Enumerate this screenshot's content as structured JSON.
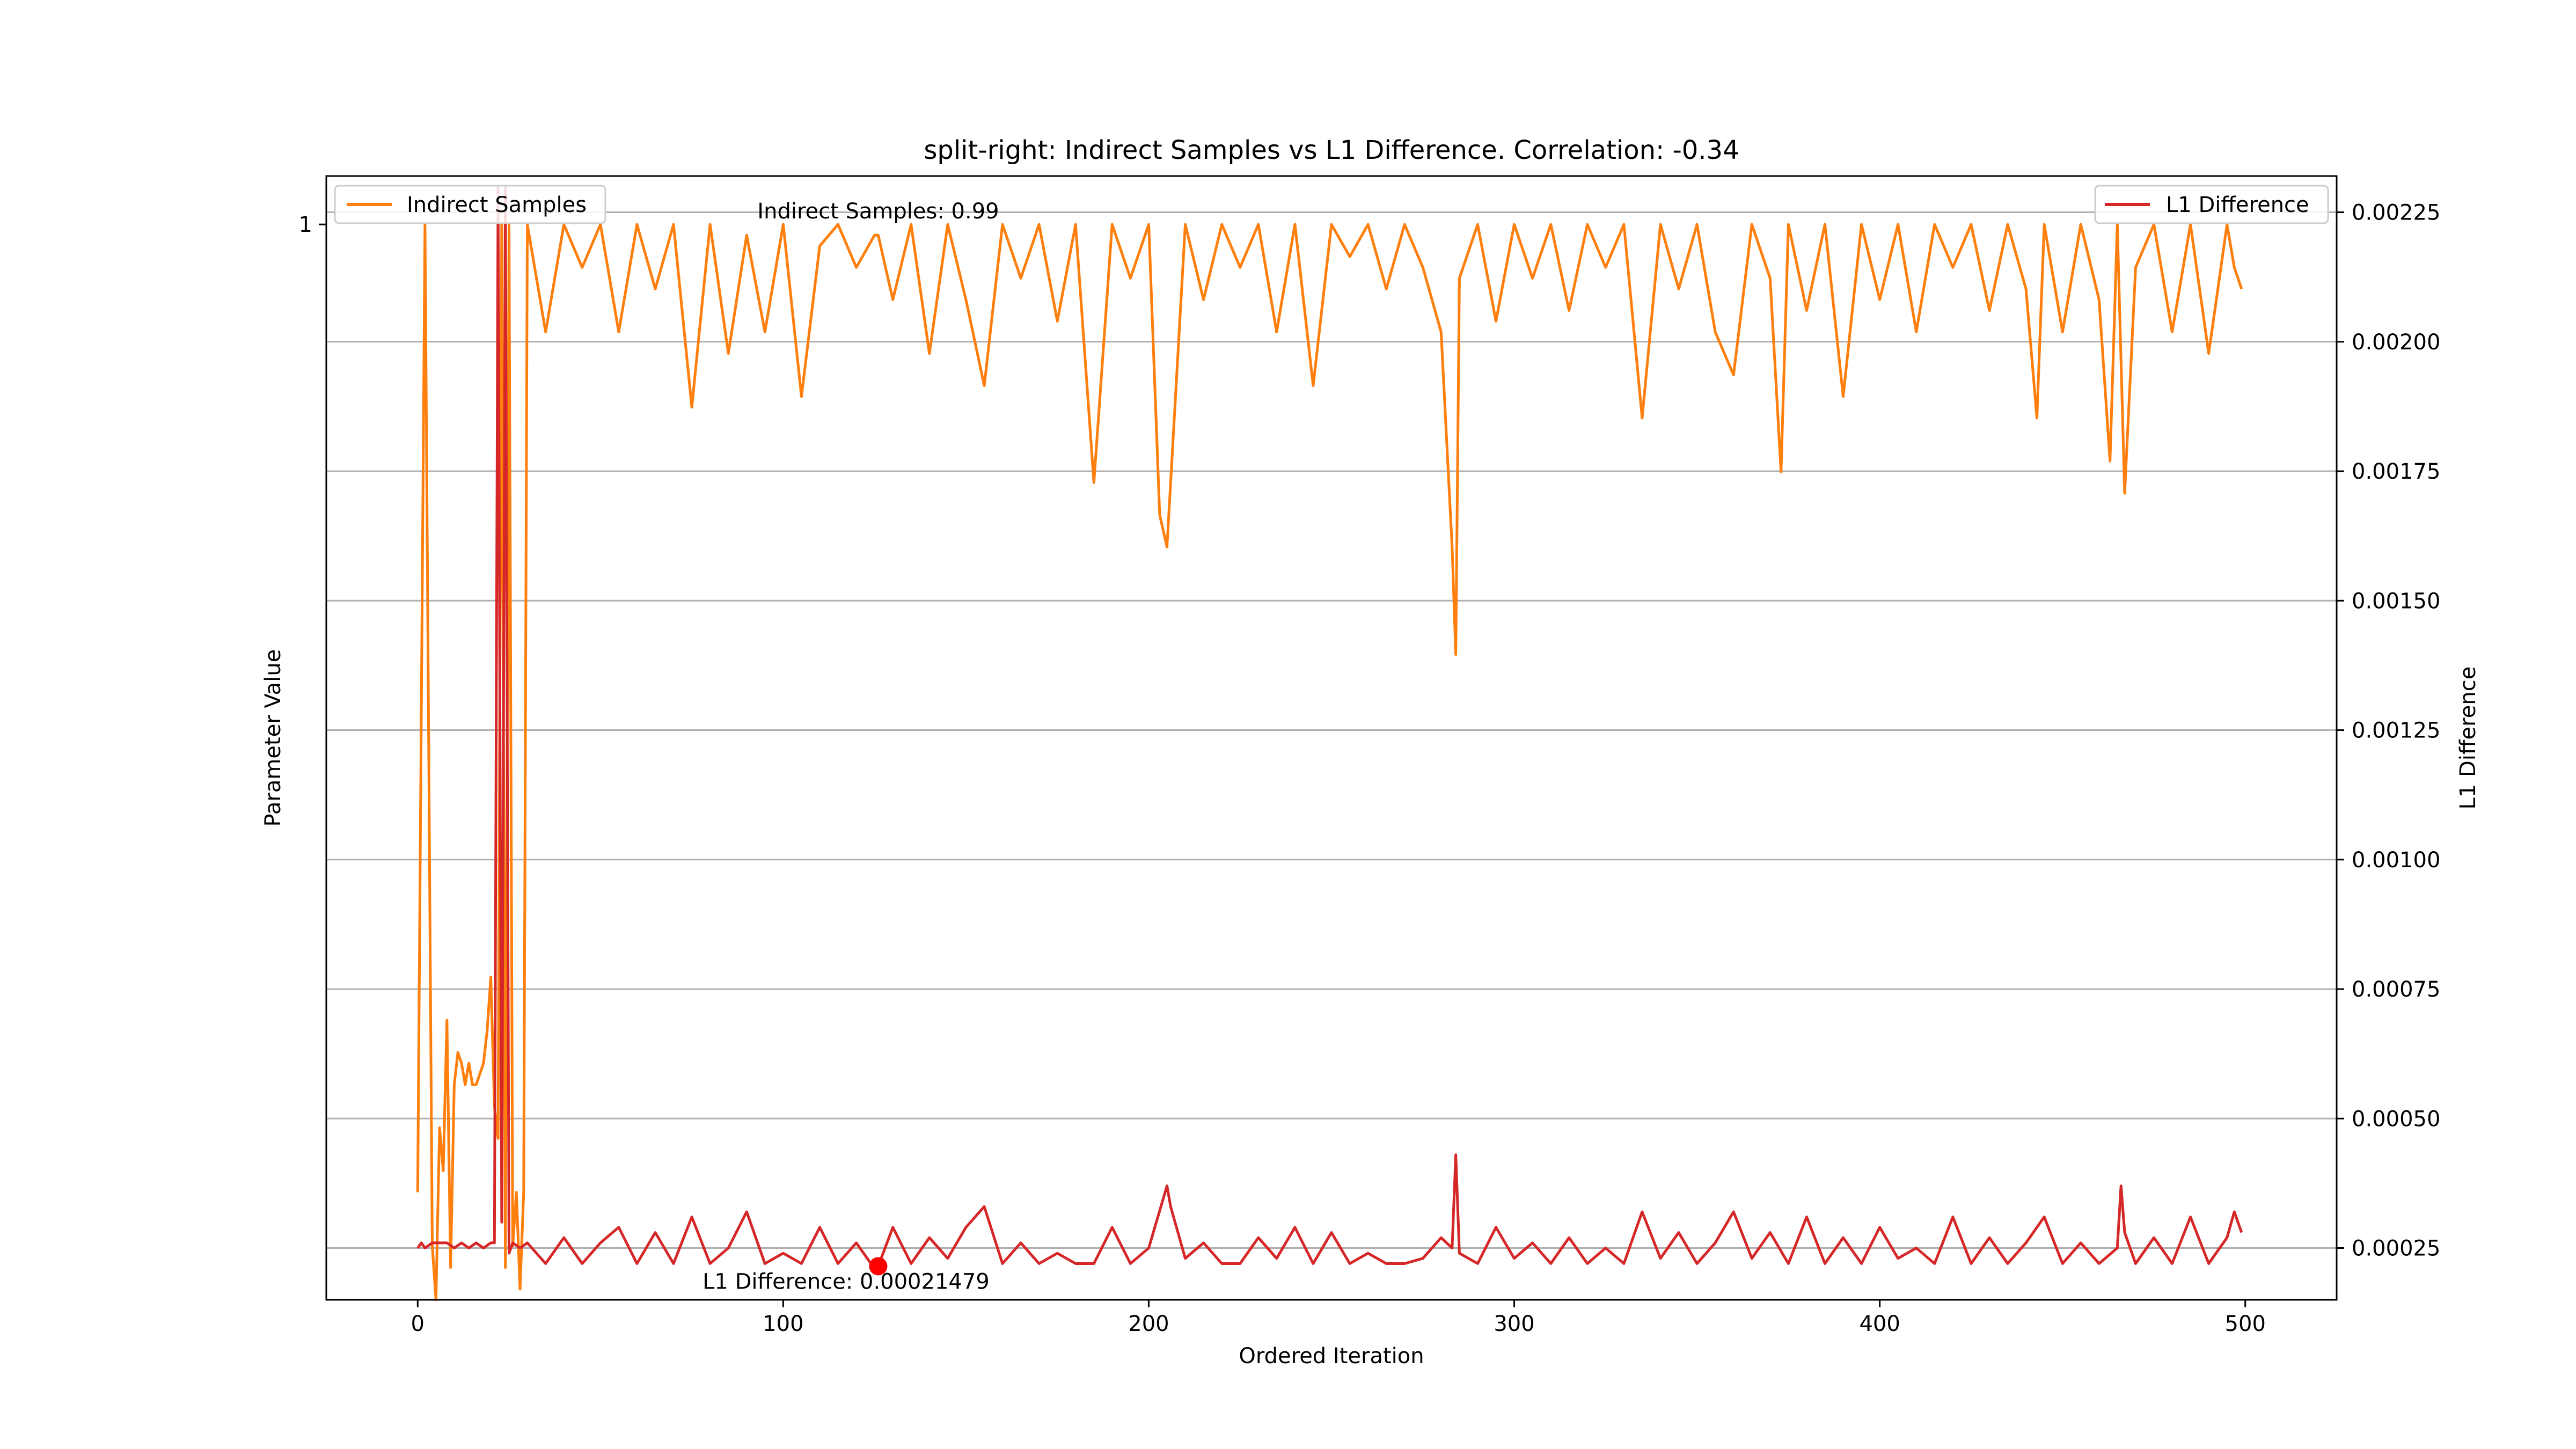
{
  "chart_data": {
    "type": "line",
    "title": "split-right: Indirect Samples vs L1 Difference. Correlation: -0.34",
    "xlabel": "Ordered Iteration",
    "ylabel_left": "Parameter Value",
    "ylabel_right": "L1 Difference",
    "xlim": [
      -25,
      525
    ],
    "ylim_left": [
      0.0,
      1.045
    ],
    "ylim_right": [
      0.00015,
      0.00232
    ],
    "x_ticks": [
      0,
      100,
      200,
      300,
      400,
      500
    ],
    "x_tick_labels": [
      "0",
      "100",
      "200",
      "300",
      "400",
      "500"
    ],
    "y_left_ticks": [
      1
    ],
    "y_left_tick_labels": [
      "1"
    ],
    "y_right_ticks": [
      0.00025,
      0.0005,
      0.00075,
      0.001,
      0.00125,
      0.0015,
      0.00175,
      0.002,
      0.00225
    ],
    "y_right_tick_labels": [
      "0.00025",
      "0.00050",
      "0.00075",
      "0.00100",
      "0.00125",
      "0.00150",
      "0.00175",
      "0.00200",
      "0.00225"
    ],
    "grid": "horizontal lines at right-axis ticks",
    "legend_left": "top-left",
    "legend_right": "top-right",
    "series": [
      {
        "name": "Indirect Samples",
        "axis": "left",
        "color": "#ff7f0e",
        "x": [
          0,
          2,
          4,
          5,
          6,
          7,
          8,
          9,
          10,
          11,
          12,
          13,
          14,
          15,
          16,
          17,
          18,
          19,
          20,
          21,
          22,
          23,
          24,
          25,
          26,
          27,
          28,
          29,
          30,
          35,
          40,
          45,
          50,
          55,
          60,
          65,
          70,
          75,
          80,
          85,
          90,
          95,
          100,
          105,
          110,
          115,
          120,
          125,
          126,
          130,
          135,
          140,
          145,
          150,
          155,
          160,
          165,
          170,
          175,
          180,
          185,
          190,
          195,
          200,
          203,
          205,
          210,
          215,
          220,
          225,
          230,
          235,
          240,
          245,
          250,
          255,
          260,
          265,
          270,
          275,
          280,
          283,
          284,
          285,
          290,
          295,
          300,
          305,
          310,
          315,
          320,
          325,
          330,
          335,
          340,
          345,
          350,
          355,
          360,
          365,
          370,
          373,
          375,
          380,
          385,
          390,
          395,
          400,
          405,
          410,
          415,
          420,
          425,
          430,
          435,
          440,
          443,
          445,
          450,
          455,
          460,
          463,
          465,
          467,
          470,
          475,
          480,
          485,
          490,
          495,
          497,
          499
        ],
        "values": [
          0.1,
          1.0,
          0.05,
          0.0,
          0.16,
          0.12,
          0.26,
          0.03,
          0.2,
          0.23,
          0.22,
          0.2,
          0.22,
          0.2,
          0.2,
          0.21,
          0.22,
          0.25,
          0.3,
          0.18,
          0.15,
          1.0,
          0.03,
          1.0,
          0.05,
          0.1,
          0.01,
          0.1,
          1.0,
          0.9,
          1.0,
          0.96,
          1.0,
          0.9,
          1.0,
          0.94,
          1.0,
          0.83,
          1.0,
          0.88,
          0.99,
          0.9,
          1.0,
          0.84,
          0.98,
          1.0,
          0.96,
          0.99,
          0.99,
          0.93,
          1.0,
          0.88,
          1.0,
          0.93,
          0.85,
          1.0,
          0.95,
          1.0,
          0.91,
          1.0,
          0.76,
          1.0,
          0.95,
          1.0,
          0.73,
          0.7,
          1.0,
          0.93,
          1.0,
          0.96,
          1.0,
          0.9,
          1.0,
          0.85,
          1.0,
          0.97,
          1.0,
          0.94,
          1.0,
          0.96,
          0.9,
          0.7,
          0.6,
          0.95,
          1.0,
          0.91,
          1.0,
          0.95,
          1.0,
          0.92,
          1.0,
          0.96,
          1.0,
          0.82,
          1.0,
          0.94,
          1.0,
          0.9,
          0.86,
          1.0,
          0.95,
          0.77,
          1.0,
          0.92,
          1.0,
          0.84,
          1.0,
          0.93,
          1.0,
          0.9,
          1.0,
          0.96,
          1.0,
          0.92,
          1.0,
          0.94,
          0.82,
          1.0,
          0.9,
          1.0,
          0.93,
          0.78,
          1.0,
          0.75,
          0.96,
          1.0,
          0.9,
          1.0,
          0.88,
          1.0,
          0.96,
          0.94
        ]
      },
      {
        "name": "L1 Difference",
        "axis": "right",
        "color": "#d62728",
        "x": [
          0,
          1,
          2,
          4,
          6,
          8,
          10,
          12,
          14,
          16,
          18,
          20,
          21,
          22,
          23,
          24,
          25,
          26,
          28,
          30,
          35,
          40,
          45,
          50,
          55,
          60,
          65,
          70,
          75,
          80,
          85,
          90,
          95,
          100,
          105,
          110,
          115,
          120,
          125,
          126,
          130,
          135,
          140,
          145,
          150,
          155,
          160,
          165,
          170,
          175,
          180,
          185,
          190,
          195,
          200,
          205,
          206,
          210,
          215,
          220,
          225,
          230,
          235,
          240,
          245,
          250,
          255,
          260,
          265,
          270,
          275,
          280,
          283,
          284,
          285,
          290,
          295,
          300,
          305,
          310,
          315,
          320,
          325,
          330,
          335,
          340,
          345,
          350,
          355,
          360,
          365,
          370,
          375,
          380,
          385,
          390,
          395,
          400,
          405,
          410,
          415,
          420,
          425,
          430,
          435,
          440,
          445,
          450,
          455,
          460,
          465,
          466,
          467,
          470,
          475,
          480,
          485,
          490,
          495,
          497,
          499
        ],
        "values": [
          0.00025,
          0.00026,
          0.00025,
          0.00026,
          0.00026,
          0.00026,
          0.00025,
          0.00026,
          0.00025,
          0.00026,
          0.00025,
          0.00026,
          0.00026,
          0.0023,
          0.0003,
          0.0023,
          0.00024,
          0.00026,
          0.00025,
          0.00026,
          0.00022,
          0.00027,
          0.00022,
          0.00026,
          0.00029,
          0.00022,
          0.00028,
          0.00022,
          0.00031,
          0.00022,
          0.00025,
          0.00032,
          0.00022,
          0.00024,
          0.00022,
          0.00029,
          0.00022,
          0.00026,
          0.00021,
          0.00021479,
          0.00029,
          0.00022,
          0.00027,
          0.00023,
          0.00029,
          0.00033,
          0.00022,
          0.00026,
          0.00022,
          0.00024,
          0.00022,
          0.00022,
          0.00029,
          0.00022,
          0.00025,
          0.00037,
          0.00033,
          0.00023,
          0.00026,
          0.00022,
          0.00022,
          0.00027,
          0.00023,
          0.00029,
          0.00022,
          0.00028,
          0.00022,
          0.00024,
          0.00022,
          0.00022,
          0.00023,
          0.00027,
          0.00025,
          0.00043,
          0.00024,
          0.00022,
          0.00029,
          0.00023,
          0.00026,
          0.00022,
          0.00027,
          0.00022,
          0.00025,
          0.00022,
          0.00032,
          0.00023,
          0.00028,
          0.00022,
          0.00026,
          0.00032,
          0.00023,
          0.00028,
          0.00022,
          0.00031,
          0.00022,
          0.00027,
          0.00022,
          0.00029,
          0.00023,
          0.00025,
          0.00022,
          0.00031,
          0.00022,
          0.00027,
          0.00022,
          0.00026,
          0.00031,
          0.00022,
          0.00026,
          0.00022,
          0.00025,
          0.00037,
          0.00028,
          0.00022,
          0.00027,
          0.00022,
          0.00031,
          0.00022,
          0.00027,
          0.00032,
          0.00028
        ]
      }
    ],
    "annotations": [
      {
        "text": "Indirect Samples: 0.99",
        "x": 126,
        "y_left": 0.99
      },
      {
        "text": "L1 Difference: 0.00021479",
        "x": 126,
        "y_right": 0.00021479
      }
    ],
    "marker": {
      "x": 126,
      "y_right": 0.00021479,
      "color": "#ff0000"
    }
  }
}
